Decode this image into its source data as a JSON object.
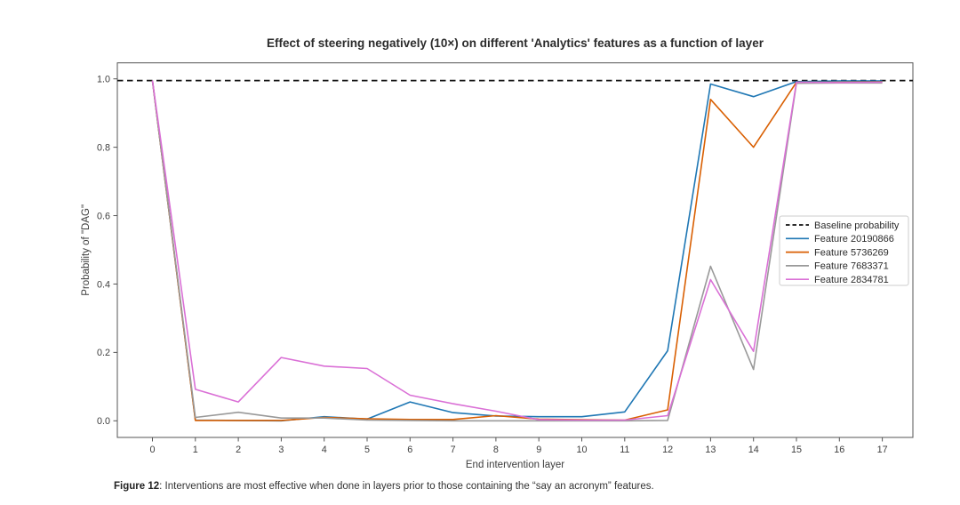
{
  "figure": {
    "caption_label": "Figure 12",
    "caption_text": ": Interventions are most effective when done in layers prior to those containing the “say an acronym” features."
  },
  "chart_data": {
    "type": "line",
    "title": "Effect of steering negatively (10×) on different 'Analytics' features as a function of layer",
    "xlabel": "End intervention layer",
    "ylabel": "Probability of \"DAG\"",
    "x": [
      0,
      1,
      2,
      3,
      4,
      5,
      6,
      7,
      8,
      9,
      10,
      11,
      12,
      13,
      14,
      15,
      16,
      17
    ],
    "x_tick_labels": [
      "0",
      "1",
      "2",
      "3",
      "4",
      "5",
      "6",
      "7",
      "8",
      "9",
      "10",
      "11",
      "12",
      "13",
      "14",
      "15",
      "16",
      "17"
    ],
    "y_ticks": [
      0.0,
      0.2,
      0.4,
      0.6,
      0.8,
      1.0
    ],
    "y_tick_labels": [
      "0.0",
      "0.2",
      "0.4",
      "0.6",
      "0.8",
      "1.0"
    ],
    "xlim": [
      -0.82,
      17.72
    ],
    "ylim": [
      -0.049,
      1.047
    ],
    "grid": false,
    "legend_position": "center right",
    "baseline": {
      "label": "Baseline probability",
      "value": 0.995,
      "color": "#111111",
      "style": "dashed"
    },
    "series": [
      {
        "name": "Feature 20190866",
        "color": "#1f77b4",
        "values": [
          0.995,
          0.002,
          0.001,
          0.0,
          0.012,
          0.005,
          0.055,
          0.024,
          0.014,
          0.012,
          0.012,
          0.026,
          0.205,
          0.985,
          0.948,
          0.992,
          0.994,
          0.994
        ]
      },
      {
        "name": "Feature 5736269",
        "color": "#d95f02",
        "values": [
          0.995,
          0.001,
          0.001,
          0.001,
          0.01,
          0.006,
          0.004,
          0.004,
          0.015,
          0.005,
          0.003,
          0.002,
          0.032,
          0.94,
          0.8,
          0.99,
          0.99,
          0.991
        ]
      },
      {
        "name": "Feature 7683371",
        "color": "#999999",
        "values": [
          0.995,
          0.01,
          0.025,
          0.008,
          0.008,
          0.002,
          0.001,
          0.0,
          0.0,
          0.0,
          0.0,
          0.0,
          0.001,
          0.452,
          0.15,
          0.987,
          0.988,
          0.988
        ]
      },
      {
        "name": "Feature 2834781",
        "color": "#da70d6",
        "values": [
          0.995,
          0.092,
          0.055,
          0.185,
          0.16,
          0.153,
          0.075,
          0.05,
          0.028,
          0.003,
          0.002,
          0.002,
          0.015,
          0.413,
          0.203,
          0.99,
          0.989,
          0.99
        ]
      }
    ]
  },
  "colors": {
    "axis": "#555555",
    "tick_label": "#3d3d3d",
    "title": "#2b2b2b",
    "legend_border": "#cccccc",
    "legend_text": "#2b2b2b"
  }
}
